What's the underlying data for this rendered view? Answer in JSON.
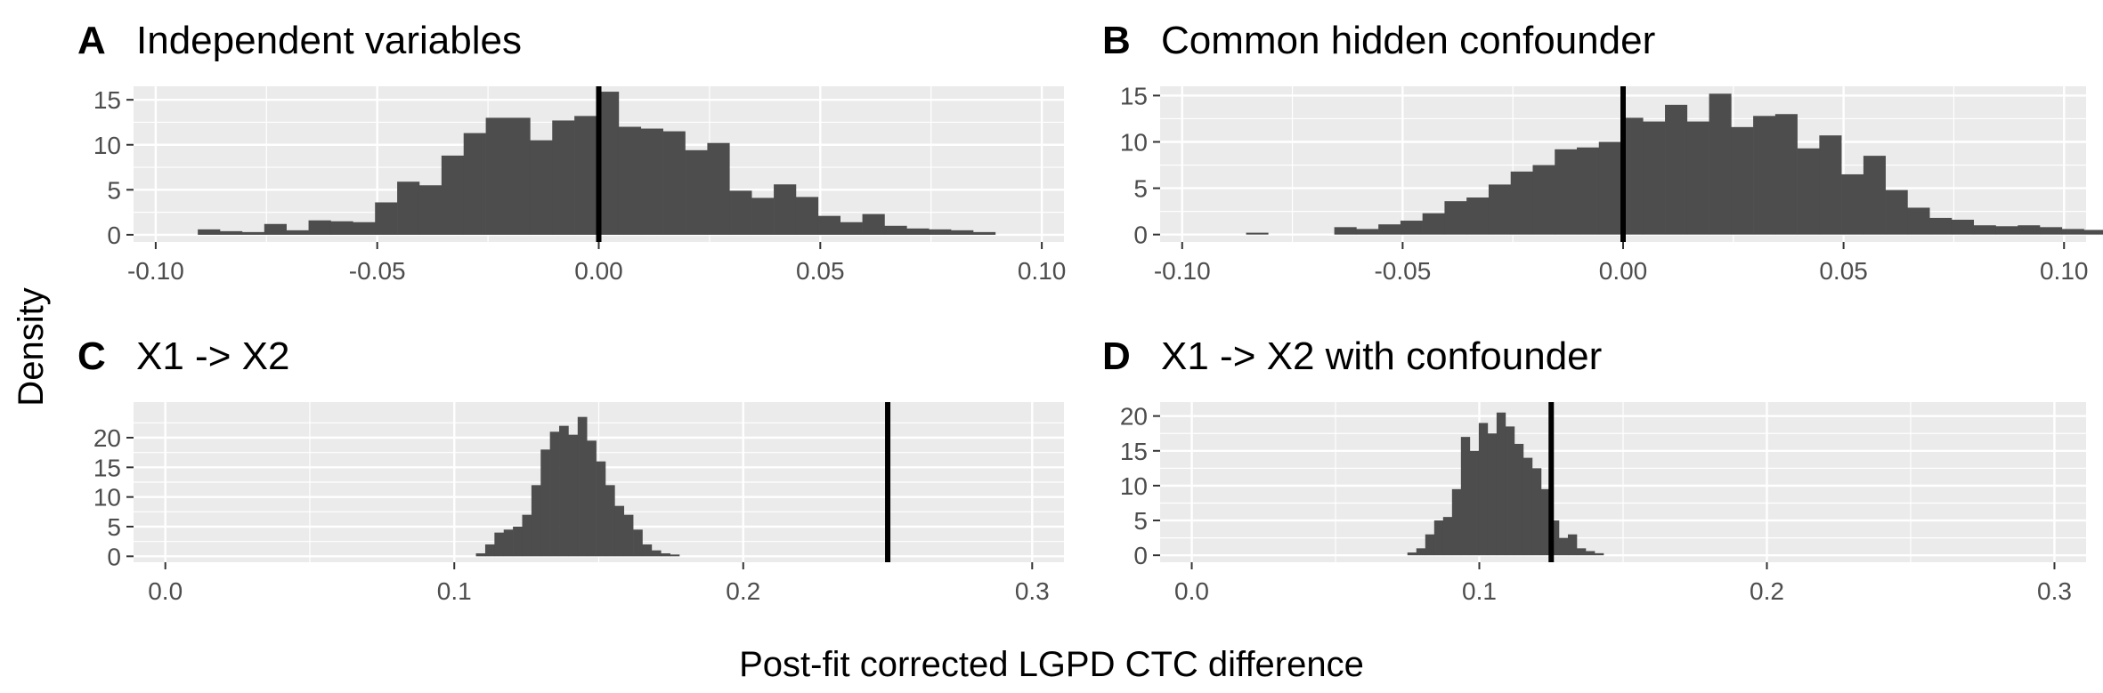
{
  "figure": {
    "ylabel": "Density",
    "xlabel": "Post-fit corrected LGPD CTC difference"
  },
  "colors": {
    "panel_bg": "#ebebeb",
    "grid": "#ffffff",
    "bar": "#4d4d4d",
    "vline": "#000000"
  },
  "chart_data": [
    {
      "type": "bar",
      "letter": "A",
      "title": "Independent variables",
      "xlim": [
        -0.105,
        0.105
      ],
      "ylim": [
        -0.8,
        16.5
      ],
      "x_ticks": [
        -0.1,
        -0.05,
        0.0,
        0.05,
        0.1
      ],
      "x_tick_labels": [
        "-0.10",
        "-0.05",
        "0.00",
        "0.05",
        "0.10"
      ],
      "y_ticks": [
        0,
        5,
        10,
        15
      ],
      "y_tick_labels": [
        "0",
        "5",
        "10",
        "15"
      ],
      "vline": 0.0,
      "bins": {
        "start": -0.0905,
        "width": 0.005,
        "values": [
          0.6,
          0.4,
          0.3,
          1.2,
          0.5,
          1.6,
          1.5,
          1.4,
          3.6,
          5.9,
          5.5,
          8.8,
          11.3,
          13.0,
          13.0,
          10.5,
          12.7,
          13.2,
          15.9,
          12.0,
          11.8,
          11.5,
          9.4,
          10.2,
          4.9,
          4.1,
          5.6,
          4.2,
          2.1,
          1.4,
          2.3,
          1.0,
          0.7,
          0.6,
          0.5,
          0.3
        ]
      }
    },
    {
      "type": "bar",
      "letter": "B",
      "title": "Common hidden confounder",
      "xlim": [
        -0.105,
        0.105
      ],
      "ylim": [
        -0.8,
        16.0
      ],
      "x_ticks": [
        -0.1,
        -0.05,
        0.0,
        0.05,
        0.1
      ],
      "x_tick_labels": [
        "-0.10",
        "-0.05",
        "0.00",
        "0.05",
        "0.10"
      ],
      "y_ticks": [
        0,
        5,
        10,
        15
      ],
      "y_tick_labels": [
        "0",
        "5",
        "10",
        "15"
      ],
      "vline": 0.0,
      "bins": {
        "start": -0.0905,
        "width": 0.005,
        "values": [
          0.0,
          0.2,
          0.0,
          0.0,
          0.0,
          0.8,
          0.6,
          1.1,
          1.5,
          2.3,
          3.6,
          4.0,
          5.4,
          6.8,
          7.5,
          9.2,
          9.4,
          10.0,
          12.6,
          12.2,
          14.0,
          12.2,
          15.2,
          11.6,
          12.8,
          13.0,
          9.3,
          10.7,
          6.5,
          8.5,
          4.8,
          2.9,
          1.8,
          1.6,
          1.0,
          0.9,
          1.0,
          0.8,
          0.6,
          0.5,
          0.0,
          0.0,
          0.0,
          0.2
        ]
      }
    },
    {
      "type": "bar",
      "letter": "C",
      "title": "X1 -> X2",
      "xlim": [
        -0.011,
        0.311
      ],
      "ylim": [
        -1.0,
        26.0
      ],
      "x_ticks": [
        0.0,
        0.1,
        0.2,
        0.3
      ],
      "x_tick_labels": [
        "0.0",
        "0.1",
        "0.2",
        "0.3"
      ],
      "y_ticks": [
        0,
        5,
        10,
        15,
        20
      ],
      "y_tick_labels": [
        "0",
        "5",
        "10",
        "15",
        "20"
      ],
      "vline": 0.25,
      "bins": {
        "start": 0.1075,
        "width": 0.0032,
        "values": [
          0.5,
          2.0,
          4.0,
          4.5,
          5.0,
          7.0,
          12.0,
          18.0,
          21.0,
          22.0,
          20.5,
          23.5,
          19.5,
          16.0,
          12.0,
          8.5,
          7.0,
          4.5,
          2.0,
          1.0,
          0.5,
          0.3
        ]
      }
    },
    {
      "type": "bar",
      "letter": "D",
      "title": "X1 -> X2 with confounder",
      "xlim": [
        -0.011,
        0.311
      ],
      "ylim": [
        -1.0,
        22.0
      ],
      "x_ticks": [
        0.0,
        0.1,
        0.2,
        0.3
      ],
      "x_tick_labels": [
        "0.0",
        "0.1",
        "0.2",
        "0.3"
      ],
      "y_ticks": [
        0,
        5,
        10,
        15,
        20
      ],
      "y_tick_labels": [
        "0",
        "5",
        "10",
        "15",
        "20"
      ],
      "vline": 0.125,
      "bins": {
        "start": 0.075,
        "width": 0.0031,
        "values": [
          0.4,
          1.0,
          3.0,
          5.0,
          5.5,
          9.5,
          17.0,
          15.0,
          19.0,
          17.5,
          20.5,
          18.5,
          16.0,
          14.0,
          12.5,
          9.5,
          5.0,
          2.5,
          3.0,
          1.0,
          0.6,
          0.3
        ]
      }
    }
  ]
}
